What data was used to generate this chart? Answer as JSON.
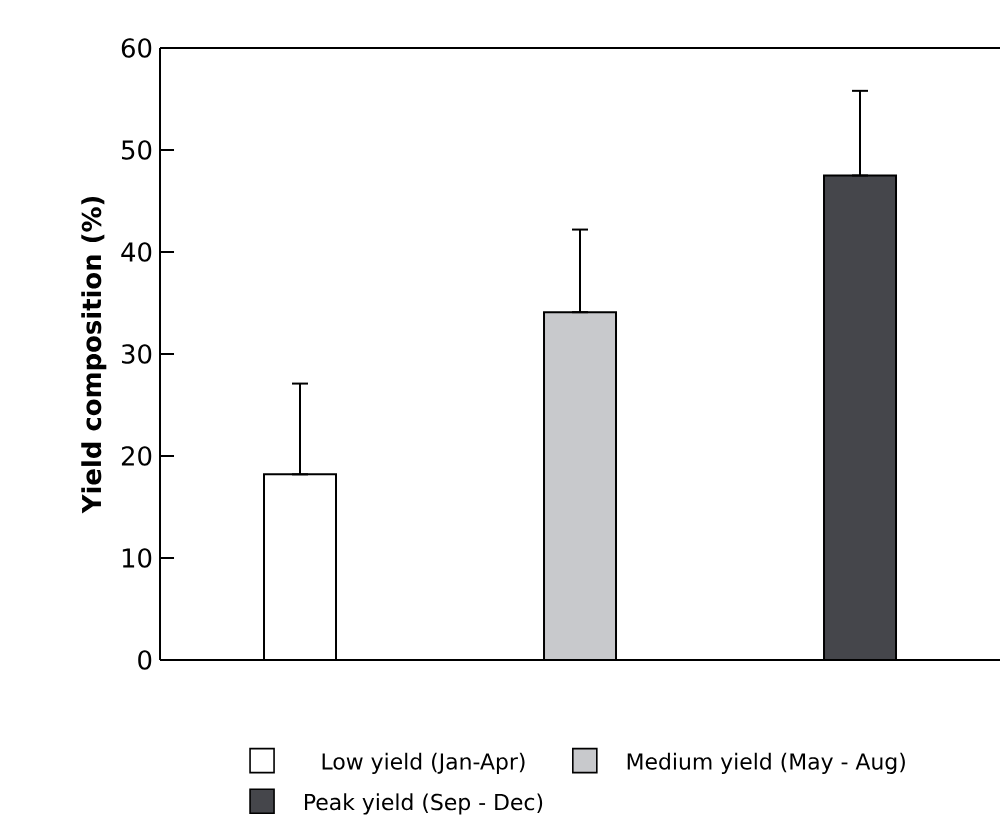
{
  "chart_data": {
    "type": "bar",
    "ylabel": "Yield composition (%)",
    "categories": [
      null,
      null,
      null
    ],
    "series": [
      {
        "name": "Low yield (Jan-Apr)",
        "color": "#ffffff",
        "values": [
          18.2,
          null,
          null
        ],
        "errors": [
          [
            18.2,
            27.1
          ],
          null,
          null
        ]
      },
      {
        "name": "Medium yield (May - Aug)",
        "color": "#c8c9cc",
        "values": [
          null,
          34.1,
          null
        ],
        "errors": [
          null,
          [
            34.1,
            42.2
          ],
          null
        ]
      },
      {
        "name": "Peak yield (Sep - Dec)",
        "color": "#45464b",
        "values": [
          null,
          null,
          47.5
        ],
        "errors": [
          null,
          null,
          [
            47.5,
            55.8
          ]
        ]
      }
    ],
    "ylim": [
      0,
      60
    ],
    "yticks": [
      0,
      10,
      20,
      30,
      40,
      50,
      60
    ],
    "legend": "bottom",
    "tick_labels": "y"
  }
}
